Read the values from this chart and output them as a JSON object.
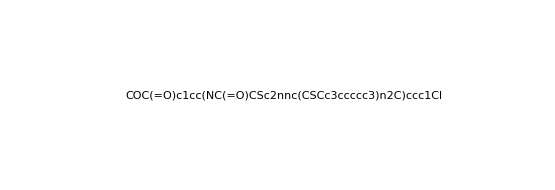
{
  "smiles": "COC(=O)c1cc(NC(=O)CSc2nnc(CSCc3ccccc3)n2C)ccc1Cl",
  "title": "",
  "background_color": "#ffffff",
  "figsize": [
    5.55,
    1.9
  ],
  "dpi": 100
}
